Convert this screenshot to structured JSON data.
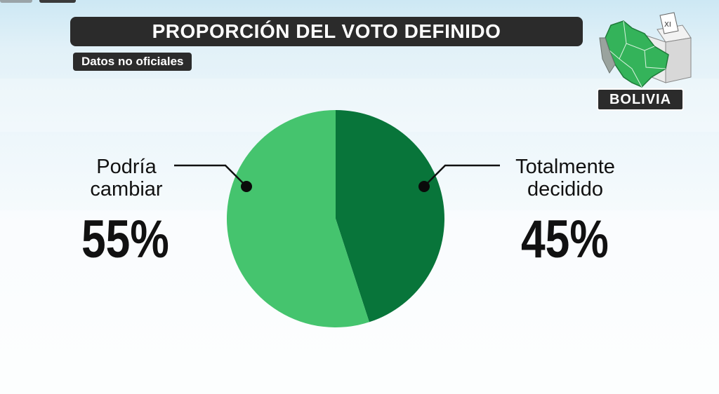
{
  "header": {
    "title": "PROPORCIÓN DEL VOTO DEFINIDO",
    "subtitle": "Datos no oficiales"
  },
  "badge": {
    "country": "BOLIVIA"
  },
  "colors": {
    "light_green": "#45c46e",
    "dark_green": "#08753a",
    "bar_dark": "#2b2b2b"
  },
  "icons": [
    "bolivia-map-icon",
    "ballot-box-icon"
  ],
  "chart_data": {
    "type": "pie",
    "title": "PROPORCIÓN DEL VOTO DEFINIDO",
    "subtitle": "Datos no oficiales",
    "slices": [
      {
        "label": "Totalmente decidido",
        "label_lines": [
          "Totalmente",
          "decidido"
        ],
        "value": 45,
        "value_label": "45%",
        "color": "#08753a"
      },
      {
        "label": "Podría cambiar",
        "label_lines": [
          "Podría",
          "cambiar"
        ],
        "value": 55,
        "value_label": "55%",
        "color": "#45c46e"
      }
    ],
    "start_angle_deg": 0,
    "direction": "clockwise",
    "legend": "none"
  }
}
